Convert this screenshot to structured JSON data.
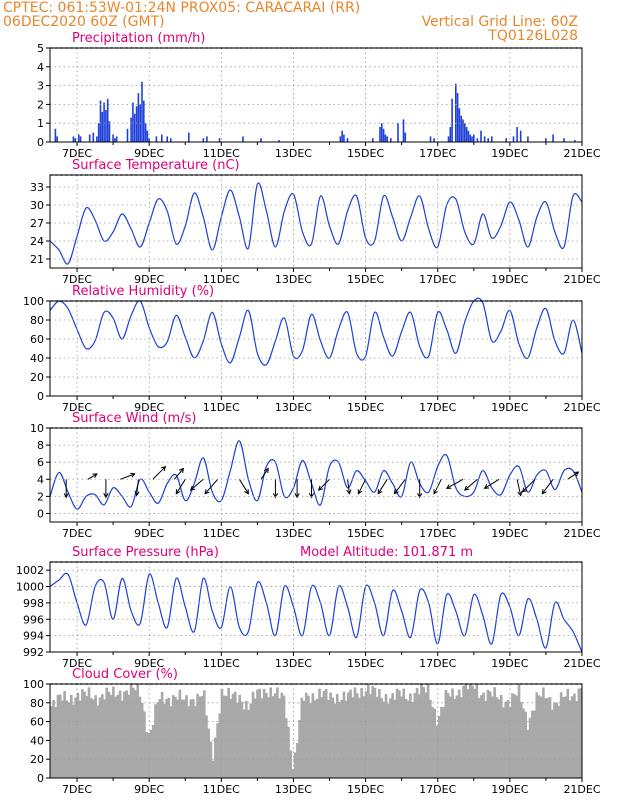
{
  "header": {
    "line1": "CPTEC:   061:53W-01:24N   PROX05: CARACARAI (RR)",
    "line2_left": "06DEC2020 60Z (GMT)",
    "line2_right": "Vertical Grid Line: 60Z",
    "line3_right": "TQ0126L028"
  },
  "colors": {
    "header": "#e8862a",
    "panel_title": "#e0007a",
    "series": "#1e3fd8",
    "cloud": "#a9a9a9",
    "grid": "#9a9a9a"
  },
  "x_axis": {
    "start_day": 6.25,
    "end_day": 21.0,
    "ticks": [
      {
        "day": 7,
        "label": "7DEC"
      },
      {
        "day": 9,
        "label": "9DEC"
      },
      {
        "day": 11,
        "label": "11DEC"
      },
      {
        "day": 13,
        "label": "13DEC"
      },
      {
        "day": 15,
        "label": "15DEC"
      },
      {
        "day": 17,
        "label": "17DEC"
      },
      {
        "day": 19,
        "label": "19DEC"
      },
      {
        "day": 21,
        "label": "21DEC"
      }
    ]
  },
  "chart_data": [
    {
      "id": "precip",
      "type": "bar",
      "title": "Precipitation (mm/h)",
      "ylim": [
        0,
        5
      ],
      "yticks": [
        0,
        1,
        2,
        3,
        4,
        5
      ],
      "x": [
        6.4,
        6.45,
        6.9,
        6.95,
        7.05,
        7.1,
        7.35,
        7.45,
        7.55,
        7.6,
        7.65,
        7.7,
        7.75,
        7.8,
        7.85,
        7.9,
        8.0,
        8.05,
        8.1,
        8.4,
        8.5,
        8.55,
        8.6,
        8.65,
        8.7,
        8.75,
        8.8,
        8.85,
        8.9,
        8.95,
        9.0,
        9.2,
        9.35,
        9.5,
        9.6,
        10.1,
        10.5,
        10.6,
        10.95,
        11.6,
        12.1,
        12.6,
        14.3,
        14.35,
        14.4,
        14.5,
        15.2,
        15.4,
        15.45,
        15.5,
        15.55,
        15.6,
        15.7,
        15.9,
        16.05,
        16.1,
        16.8,
        16.9,
        17.3,
        17.35,
        17.4,
        17.5,
        17.55,
        17.6,
        17.65,
        17.7,
        17.75,
        17.8,
        17.85,
        17.9,
        17.95,
        18.0,
        18.1,
        18.2,
        18.3,
        18.4,
        18.5,
        18.9,
        19.1,
        19.2,
        19.3,
        19.5,
        20.0,
        20.2,
        20.5,
        20.8
      ],
      "values": [
        0.7,
        0.3,
        0.3,
        0.2,
        0.4,
        0.3,
        0.4,
        0.5,
        0.3,
        1.0,
        2.2,
        1.6,
        2.1,
        1.7,
        2.3,
        1.1,
        0.4,
        0.2,
        0.3,
        0.7,
        1.3,
        2.1,
        1.5,
        1.9,
        2.6,
        2.0,
        3.2,
        2.2,
        1.0,
        0.6,
        0.2,
        0.3,
        0.4,
        0.3,
        0.2,
        0.5,
        0.2,
        0.3,
        0.2,
        0.3,
        0.2,
        0.1,
        0.3,
        0.6,
        0.4,
        0.2,
        0.2,
        0.8,
        1.0,
        0.7,
        0.4,
        0.3,
        0.2,
        1.0,
        1.2,
        0.5,
        0.3,
        0.2,
        0.3,
        0.8,
        2.3,
        3.1,
        2.6,
        1.8,
        1.4,
        1.2,
        1.0,
        0.8,
        0.6,
        0.4,
        0.3,
        0.4,
        0.2,
        0.6,
        0.3,
        0.2,
        0.3,
        0.2,
        0.3,
        0.8,
        0.6,
        0.3,
        0.2,
        0.4,
        0.2,
        0.1
      ]
    },
    {
      "id": "temp",
      "type": "line",
      "title": "Surface Temperature (nC)",
      "ylim": [
        19.5,
        35
      ],
      "yticks": [
        21,
        24,
        27,
        30,
        33
      ],
      "x": [
        6.25,
        6.5,
        6.75,
        7.0,
        7.25,
        7.5,
        7.75,
        8.0,
        8.25,
        8.5,
        8.75,
        9.0,
        9.25,
        9.5,
        9.75,
        10.0,
        10.25,
        10.5,
        10.75,
        11.0,
        11.25,
        11.5,
        11.75,
        12.0,
        12.25,
        12.5,
        12.75,
        13.0,
        13.25,
        13.5,
        13.75,
        14.0,
        14.25,
        14.5,
        14.75,
        15.0,
        15.25,
        15.5,
        15.75,
        16.0,
        16.25,
        16.5,
        16.75,
        17.0,
        17.25,
        17.5,
        17.75,
        18.0,
        18.25,
        18.5,
        18.75,
        19.0,
        19.25,
        19.5,
        19.75,
        20.0,
        20.25,
        20.5,
        20.75,
        21.0
      ],
      "values": [
        24,
        22.5,
        20.2,
        24.8,
        29.5,
        27.5,
        24,
        25.5,
        28.5,
        26,
        23,
        27,
        31,
        29,
        23.5,
        26.5,
        32,
        28,
        22.5,
        28,
        32.5,
        28,
        22.8,
        33.5,
        29,
        23,
        29,
        31.8,
        25.5,
        23.5,
        31.5,
        26.5,
        23.5,
        29,
        31.5,
        24.5,
        24,
        31.5,
        28,
        24,
        28,
        31.5,
        26,
        23,
        30,
        31,
        25.5,
        23.5,
        28.5,
        24.5,
        26.5,
        30.5,
        27.5,
        23,
        28,
        30.5,
        25.5,
        23,
        31.5,
        30.5
      ]
    },
    {
      "id": "rh",
      "type": "line",
      "title": "Relative Humidity (%)",
      "ylim": [
        0,
        100
      ],
      "yticks": [
        0,
        20,
        40,
        60,
        80,
        100
      ],
      "x": [
        6.25,
        6.5,
        6.75,
        7.0,
        7.25,
        7.5,
        7.75,
        8.0,
        8.25,
        8.5,
        8.75,
        9.0,
        9.25,
        9.5,
        9.75,
        10.0,
        10.25,
        10.5,
        10.75,
        11.0,
        11.25,
        11.5,
        11.75,
        12.0,
        12.25,
        12.5,
        12.75,
        13.0,
        13.25,
        13.5,
        13.75,
        14.0,
        14.25,
        14.5,
        14.75,
        15.0,
        15.25,
        15.5,
        15.75,
        16.0,
        16.25,
        16.5,
        16.75,
        17.0,
        17.25,
        17.5,
        17.75,
        18.0,
        18.25,
        18.5,
        18.75,
        19.0,
        19.25,
        19.5,
        19.75,
        20.0,
        20.25,
        20.5,
        20.75,
        21.0
      ],
      "values": [
        90,
        100,
        92,
        70,
        50,
        58,
        88,
        82,
        60,
        85,
        100,
        72,
        52,
        57,
        85,
        62,
        40,
        58,
        88,
        55,
        35,
        62,
        90,
        45,
        33,
        58,
        82,
        42,
        48,
        86,
        58,
        40,
        70,
        88,
        45,
        42,
        88,
        62,
        42,
        68,
        88,
        52,
        42,
        88,
        70,
        45,
        78,
        100,
        98,
        58,
        68,
        90,
        55,
        40,
        72,
        92,
        58,
        45,
        80,
        45
      ]
    },
    {
      "id": "wind",
      "type": "line",
      "title": "Surface Wind (m/s)",
      "ylim": [
        -1,
        10
      ],
      "yticks": [
        0,
        2,
        4,
        6,
        8,
        10
      ],
      "x": [
        6.25,
        6.5,
        6.75,
        7.0,
        7.25,
        7.5,
        7.75,
        8.0,
        8.25,
        8.5,
        8.75,
        9.0,
        9.25,
        9.5,
        9.75,
        10.0,
        10.25,
        10.5,
        10.75,
        11.0,
        11.25,
        11.5,
        11.75,
        12.0,
        12.25,
        12.5,
        12.75,
        13.0,
        13.25,
        13.5,
        13.75,
        14.0,
        14.25,
        14.5,
        14.75,
        15.0,
        15.25,
        15.5,
        15.75,
        16.0,
        16.25,
        16.5,
        16.75,
        17.0,
        17.25,
        17.5,
        17.75,
        18.0,
        18.25,
        18.5,
        18.75,
        19.0,
        19.25,
        19.5,
        19.75,
        20.0,
        20.25,
        20.5,
        20.75,
        21.0
      ],
      "values": [
        2,
        4.8,
        2.5,
        0.5,
        2,
        2.2,
        1,
        3,
        2,
        0.8,
        4,
        2.5,
        1.2,
        3.5,
        4.5,
        1.5,
        3.5,
        6.5,
        2.5,
        1.5,
        5,
        8.5,
        4,
        1.5,
        5.5,
        6,
        2,
        3,
        6.2,
        3.5,
        1,
        5.5,
        6,
        3,
        5,
        3.8,
        2.5,
        5,
        3.5,
        2,
        6,
        3.5,
        2.5,
        5.5,
        6.8,
        3,
        2,
        2.5,
        5,
        3,
        2.2,
        4.5,
        5.5,
        2.5,
        4.5,
        5,
        2.8,
        5,
        5,
        2.5
      ],
      "arrows": [
        {
          "day": 6.7,
          "u": 0.0,
          "v": -1.0
        },
        {
          "day": 7.3,
          "u": 0.5,
          "v": 0.3
        },
        {
          "day": 7.8,
          "u": 0.0,
          "v": -1.0
        },
        {
          "day": 8.2,
          "u": 0.8,
          "v": 0.3
        },
        {
          "day": 8.7,
          "u": -0.1,
          "v": -0.9
        },
        {
          "day": 9.1,
          "u": 0.7,
          "v": 0.7
        },
        {
          "day": 9.7,
          "u": 0.5,
          "v": 0.6
        },
        {
          "day": 10.0,
          "u": -0.5,
          "v": -0.8
        },
        {
          "day": 10.5,
          "u": -0.7,
          "v": -0.6
        },
        {
          "day": 10.9,
          "u": -0.7,
          "v": -0.8
        },
        {
          "day": 11.5,
          "u": 0.5,
          "v": -0.8
        },
        {
          "day": 12.1,
          "u": 0.4,
          "v": 0.6
        },
        {
          "day": 12.5,
          "u": 0.0,
          "v": -1.0
        },
        {
          "day": 13.1,
          "u": 0.0,
          "v": -1.0
        },
        {
          "day": 13.5,
          "u": 0.0,
          "v": -1.0
        },
        {
          "day": 14.0,
          "u": -0.6,
          "v": -0.6
        },
        {
          "day": 14.5,
          "u": 0.1,
          "v": -0.8
        },
        {
          "day": 15.0,
          "u": -0.4,
          "v": -0.8
        },
        {
          "day": 15.6,
          "u": -0.5,
          "v": -0.8
        },
        {
          "day": 16.1,
          "u": -0.6,
          "v": -0.8
        },
        {
          "day": 16.5,
          "u": 0.0,
          "v": -1.0
        },
        {
          "day": 17.1,
          "u": -0.4,
          "v": -0.8
        },
        {
          "day": 17.7,
          "u": -0.9,
          "v": -0.5
        },
        {
          "day": 18.1,
          "u": -0.7,
          "v": -0.6
        },
        {
          "day": 18.7,
          "u": -0.8,
          "v": -0.5
        },
        {
          "day": 19.2,
          "u": 0.2,
          "v": -0.9
        },
        {
          "day": 19.7,
          "u": -0.7,
          "v": -0.7
        },
        {
          "day": 20.2,
          "u": -0.6,
          "v": -0.8
        },
        {
          "day": 20.6,
          "u": 0.6,
          "v": 0.4
        }
      ]
    },
    {
      "id": "pres",
      "type": "line",
      "title": "Surface Pressure (hPa)",
      "annotation": "Model Altitude: 101.871 m",
      "ylim": [
        992,
        1003
      ],
      "yticks": [
        992,
        994,
        996,
        998,
        1000,
        1002
      ],
      "x": [
        6.25,
        6.5,
        6.75,
        7.0,
        7.25,
        7.5,
        7.75,
        8.0,
        8.25,
        8.5,
        8.75,
        9.0,
        9.25,
        9.5,
        9.75,
        10.0,
        10.25,
        10.5,
        10.75,
        11.0,
        11.25,
        11.5,
        11.75,
        12.0,
        12.25,
        12.5,
        12.75,
        13.0,
        13.25,
        13.5,
        13.75,
        14.0,
        14.25,
        14.5,
        14.75,
        15.0,
        15.25,
        15.5,
        15.75,
        16.0,
        16.25,
        16.5,
        16.75,
        17.0,
        17.25,
        17.5,
        17.75,
        18.0,
        18.25,
        18.5,
        18.75,
        19.0,
        19.25,
        19.5,
        19.75,
        20.0,
        20.25,
        20.5,
        20.75,
        21.0
      ],
      "values": [
        1000,
        1000.8,
        1001.5,
        998,
        995.3,
        1000,
        1000.5,
        996,
        1001,
        997,
        995.5,
        1001.5,
        998,
        995,
        1001,
        997.5,
        994.5,
        1001,
        997,
        995,
        1000,
        995,
        994.5,
        1000.5,
        998,
        994,
        1000,
        997.5,
        994,
        1000,
        998,
        994,
        1000,
        997.5,
        993.8,
        1000,
        998,
        994,
        999.5,
        997,
        993.8,
        999.5,
        998,
        993,
        999,
        997,
        994,
        999,
        996.5,
        993,
        999,
        997.5,
        994,
        998.5,
        996,
        992.5,
        998,
        996,
        994.5,
        992
      ]
    },
    {
      "id": "cloud",
      "type": "area",
      "title": "Cloud Cover (%)",
      "ylim": [
        0,
        100
      ],
      "yticks": [
        0,
        20,
        40,
        60,
        80,
        100
      ],
      "x": [
        6.25,
        6.5,
        6.75,
        7.0,
        7.25,
        7.5,
        7.75,
        8.0,
        8.25,
        8.5,
        8.75,
        9.0,
        9.25,
        9.5,
        9.75,
        10.0,
        10.25,
        10.5,
        10.75,
        11.0,
        11.25,
        11.5,
        11.75,
        12.0,
        12.25,
        12.5,
        12.75,
        13.0,
        13.25,
        13.5,
        13.75,
        14.0,
        14.25,
        14.5,
        14.75,
        15.0,
        15.25,
        15.5,
        15.75,
        16.0,
        16.25,
        16.5,
        16.75,
        17.0,
        17.25,
        17.5,
        17.75,
        18.0,
        18.25,
        18.5,
        18.75,
        19.0,
        19.25,
        19.5,
        19.75,
        20.0,
        20.25,
        20.5,
        20.75,
        21.0
      ],
      "values": [
        80,
        85,
        82,
        90,
        88,
        85,
        90,
        88,
        92,
        95,
        90,
        45,
        82,
        85,
        88,
        80,
        86,
        90,
        20,
        92,
        85,
        88,
        75,
        90,
        95,
        88,
        85,
        10,
        84,
        88,
        90,
        85,
        88,
        85,
        92,
        95,
        90,
        88,
        85,
        90,
        88,
        92,
        95,
        60,
        88,
        92,
        95,
        98,
        90,
        88,
        85,
        82,
        90,
        60,
        85,
        88,
        80,
        85,
        88,
        98
      ]
    }
  ]
}
